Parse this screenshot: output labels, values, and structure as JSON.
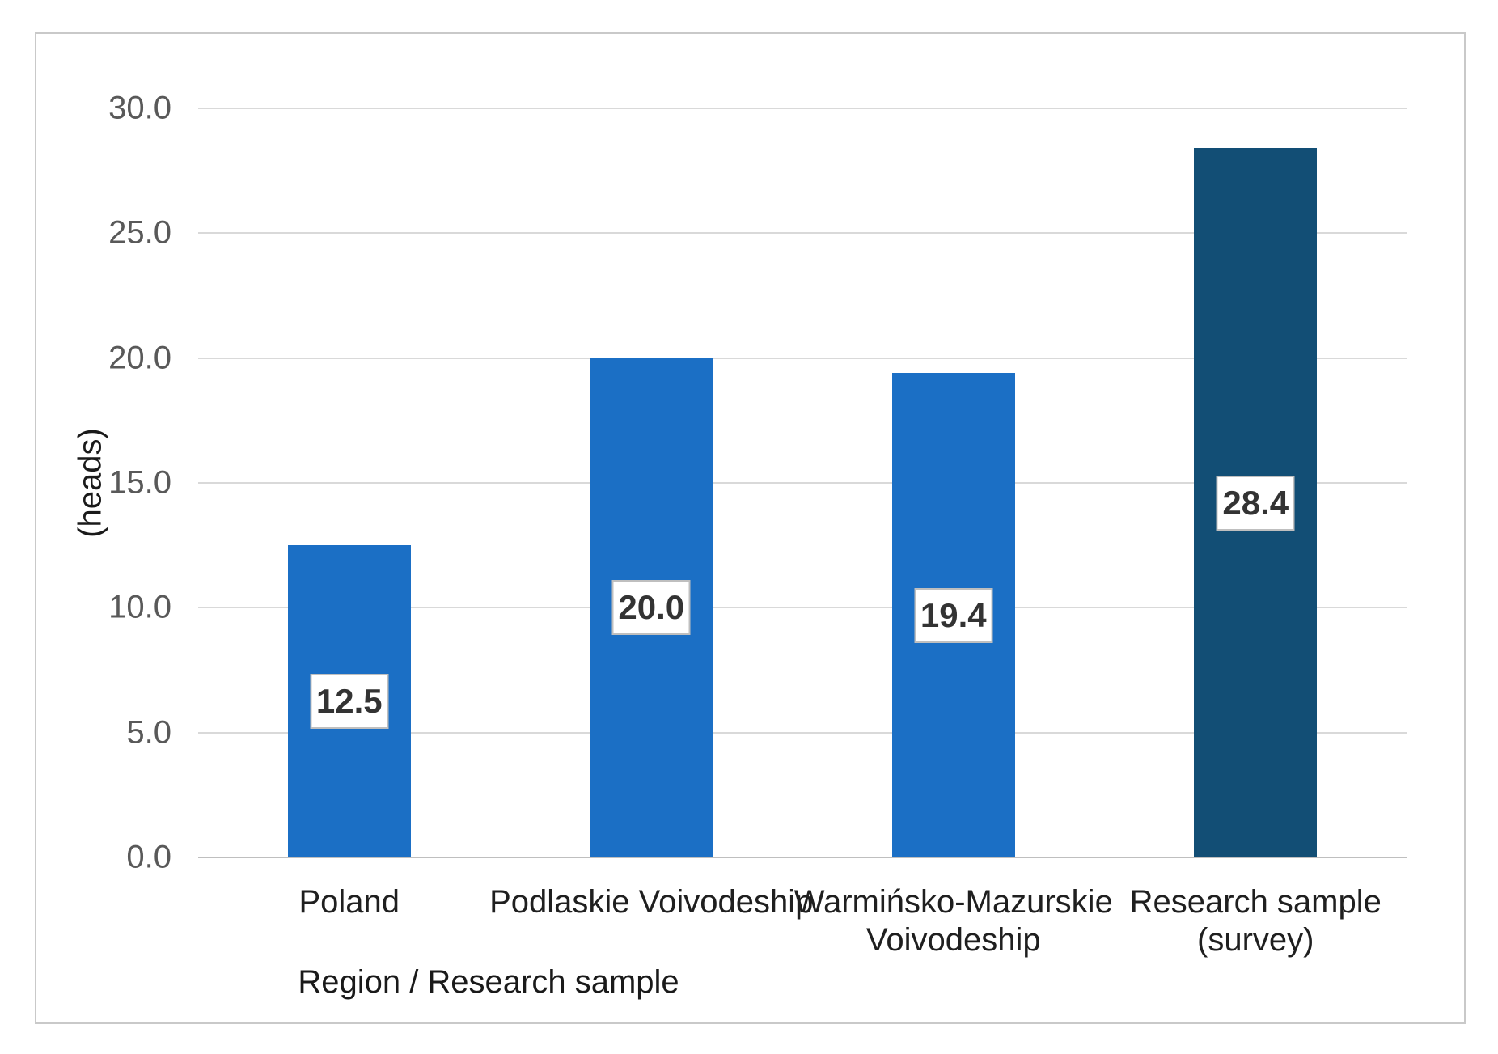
{
  "chart_data": {
    "type": "bar",
    "title": "",
    "xlabel": "Region / Research sample",
    "ylabel": "(heads)",
    "categories": [
      "Poland",
      "Podlaskie Voivodeship",
      "Warmińsko-Mazurskie Voivodeship",
      "Research sample (survey)"
    ],
    "category_lines": [
      [
        "Poland"
      ],
      [
        "Podlaskie Voivodeship"
      ],
      [
        "Warmińsko-Mazurskie",
        "Voivodeship"
      ],
      [
        "Research sample",
        "(survey)"
      ]
    ],
    "values": [
      12.5,
      20.0,
      19.4,
      28.4
    ],
    "data_labels": [
      "12.5",
      "20.0",
      "19.4",
      "28.4"
    ],
    "ylim": [
      0,
      30
    ],
    "yticks": [
      "0.0",
      "5.0",
      "10.0",
      "15.0",
      "20.0",
      "25.0",
      "30.0"
    ],
    "grid": true,
    "legend_position": "none",
    "data_label_position": "inside-center",
    "bar_colors": [
      "#1B6FC5",
      "#1B6FC5",
      "#1B6FC5",
      "#124E75"
    ]
  },
  "colors": {
    "bar_light": "#1B6FC5",
    "bar_dark": "#124E75",
    "gridline": "#D9D9D9",
    "axis_line": "#BFBFBF",
    "tick_text": "#595959",
    "category_text": "#1F1F1F",
    "data_label_text": "#333333",
    "data_label_border": "#BFBFBF",
    "frame_border": "#C9C9C9",
    "background": "#FFFFFF"
  }
}
